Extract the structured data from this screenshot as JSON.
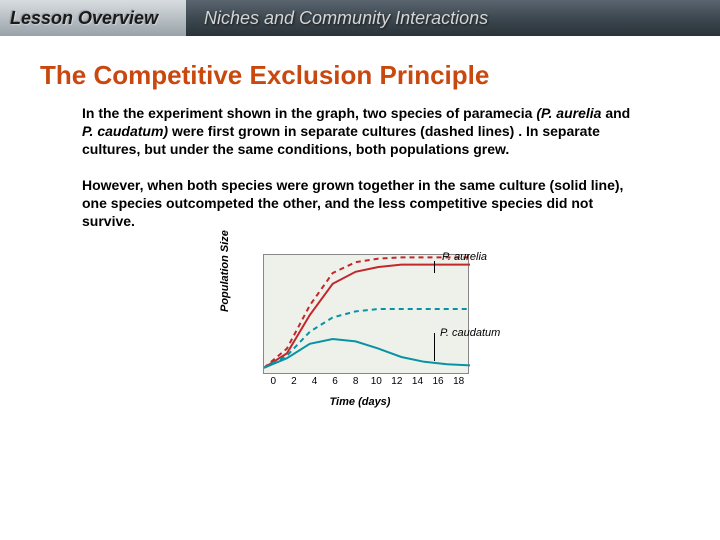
{
  "header": {
    "overview": "Lesson Overview",
    "title": "Niches and Community Interactions"
  },
  "section_title": "The Competitive Exclusion Principle",
  "para1_a": "In the the experiment shown in the graph, two species of paramecia ",
  "para1_b": "(P. aurelia",
  "para1_c": " and ",
  "para1_d": "P. caudatum)",
  "para1_e": "  were first grown in separate cultures (dashed lines) . In separate cultures, but under the same conditions, both populations grew.",
  "para2": "However, when both species were grown together in the same culture (solid line), one species outcompeted the other, and the less competitive species did not survive.",
  "chart": {
    "ylabel": "Population Size",
    "xlabel": "Time (days)",
    "xticks": [
      "0",
      "2",
      "4",
      "6",
      "8",
      "10",
      "12",
      "14",
      "16",
      "18"
    ],
    "species1_label": "P. aurelia",
    "species2_label": "P. caudatum",
    "colors": {
      "bg": "#eef1e9",
      "aurelia": "#c1272d",
      "caudatum": "#0893a5",
      "axis": "#888888"
    },
    "series": {
      "aurelia_dashed": {
        "x": [
          0,
          2,
          4,
          6,
          8,
          10,
          12,
          14,
          16,
          18
        ],
        "y": [
          6,
          22,
          58,
          85,
          94,
          97,
          98,
          98,
          98,
          98
        ]
      },
      "aurelia_solid": {
        "x": [
          0,
          2,
          4,
          6,
          8,
          10,
          12,
          14,
          16,
          18
        ],
        "y": [
          6,
          18,
          50,
          76,
          86,
          90,
          92,
          92,
          92,
          92
        ]
      },
      "caudatum_dashed": {
        "x": [
          0,
          2,
          4,
          6,
          8,
          10,
          12,
          14,
          16,
          18
        ],
        "y": [
          6,
          16,
          36,
          48,
          53,
          55,
          55,
          55,
          55,
          55
        ]
      },
      "caudatum_solid": {
        "x": [
          0,
          2,
          4,
          6,
          8,
          10,
          12,
          14,
          16,
          18
        ],
        "y": [
          6,
          14,
          26,
          30,
          28,
          22,
          15,
          11,
          9,
          8
        ]
      }
    },
    "xlim": [
      0,
      18
    ],
    "ylim": [
      0,
      100
    ]
  }
}
